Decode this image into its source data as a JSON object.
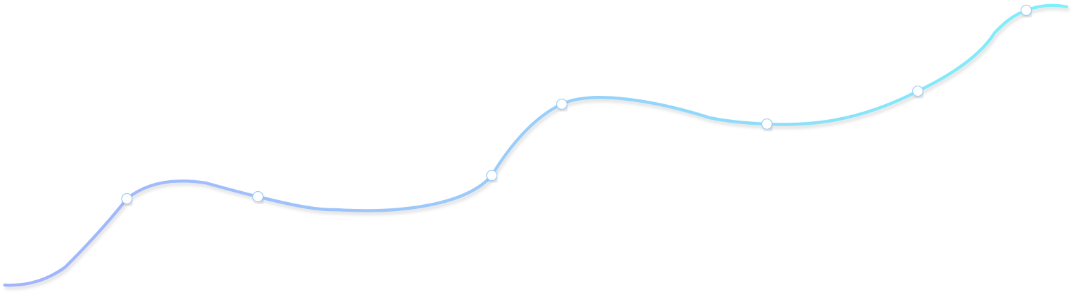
{
  "colors": {
    "line_start": "#a3b3fd",
    "line_mid": "#9ccbfb",
    "line_end": "#7df2fa",
    "marker_fill": "#ffffff",
    "marker_stroke": "#9ccffb",
    "background": "#ffffff"
  },
  "marker_count": 7
}
